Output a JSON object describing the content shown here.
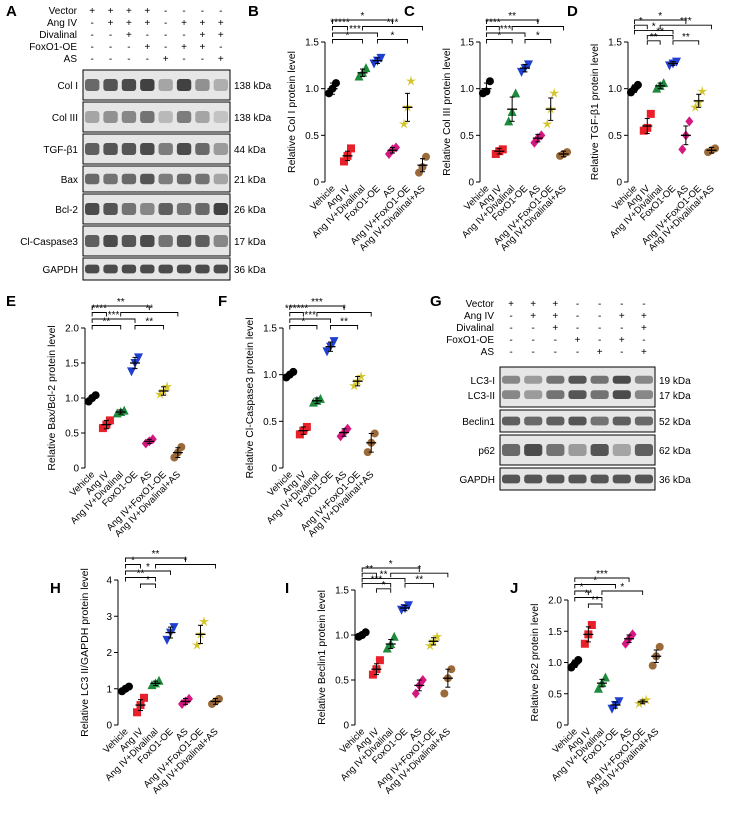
{
  "panel_letters": [
    "A",
    "B",
    "C",
    "D",
    "E",
    "F",
    "G",
    "H",
    "I",
    "J"
  ],
  "colors": {
    "Vehicle": "#000000",
    "Ang IV": "#e8202a",
    "Ang IV+Divalinal": "#1e8a3c",
    "FoxO1-OE": "#1f3fd1",
    "AS": "#d4187f",
    "Ang IV+FoxO1-OE": "#d4c42a",
    "Ang IV+Divalinal+AS": "#9a6a3a"
  },
  "blotA": {
    "rows": [
      {
        "name": "Vector",
        "signs": [
          "+",
          "+",
          "+",
          "+",
          "-",
          "-",
          "-",
          "-"
        ]
      },
      {
        "name": "Ang IV",
        "signs": [
          "-",
          "+",
          "+",
          "+",
          "-",
          "+",
          "+",
          "+"
        ]
      },
      {
        "name": "Divalinal",
        "signs": [
          "-",
          "-",
          "+",
          "-",
          "-",
          "-",
          "+",
          "+"
        ]
      },
      {
        "name": "FoxO1-OE",
        "signs": [
          "-",
          "-",
          "-",
          "+",
          "-",
          "+",
          "+",
          "-"
        ]
      },
      {
        "name": "AS",
        "signs": [
          "-",
          "-",
          "-",
          "-",
          "+",
          "-",
          "-",
          "+"
        ]
      }
    ],
    "bands": [
      {
        "name": "Col I",
        "kda": "138 kDa",
        "intensity": [
          0.75,
          0.85,
          0.9,
          0.95,
          0.45,
          0.95,
          0.55,
          0.4
        ]
      },
      {
        "name": "Col III",
        "kda": "138 kDa",
        "intensity": [
          0.45,
          0.55,
          0.6,
          0.7,
          0.35,
          0.65,
          0.45,
          0.3
        ]
      },
      {
        "name": "TGF-β1",
        "kda": "44 kDa",
        "intensity": [
          0.8,
          0.85,
          0.85,
          0.9,
          0.65,
          0.9,
          0.75,
          0.5
        ]
      },
      {
        "name": "Bax",
        "kda": "21 kDa",
        "intensity": [
          0.75,
          0.7,
          0.75,
          0.85,
          0.65,
          0.75,
          0.7,
          0.45
        ]
      },
      {
        "name": "Bcl-2",
        "kda": "26 kDa",
        "intensity": [
          0.9,
          0.85,
          0.7,
          0.6,
          0.8,
          0.7,
          0.75,
          0.95
        ]
      },
      {
        "name": "Cl-Caspase3",
        "kda": "17 kDa",
        "intensity": [
          0.8,
          0.9,
          0.85,
          0.9,
          0.7,
          0.85,
          0.8,
          0.6
        ]
      },
      {
        "name": "GAPDH",
        "kda": "36 kDa",
        "intensity": [
          0.9,
          0.9,
          0.9,
          0.9,
          0.9,
          0.9,
          0.9,
          0.9
        ]
      }
    ]
  },
  "blotG": {
    "rows": [
      {
        "name": "Vector",
        "signs": [
          "+",
          "+",
          "+",
          "-",
          "-",
          "-",
          "-"
        ]
      },
      {
        "name": "Ang IV",
        "signs": [
          "-",
          "+",
          "+",
          "-",
          "-",
          "+",
          "+"
        ]
      },
      {
        "name": "Divalinal",
        "signs": [
          "-",
          "-",
          "+",
          "-",
          "-",
          "-",
          "+"
        ]
      },
      {
        "name": "FoxO1-OE",
        "signs": [
          "-",
          "-",
          "-",
          "+",
          "-",
          "+",
          "-"
        ]
      },
      {
        "name": "AS",
        "signs": [
          "-",
          "-",
          "-",
          "-",
          "+",
          "-",
          "+"
        ]
      }
    ],
    "bands": [
      {
        "name": "LC3-I\nLC3-II",
        "kda": "19 kDa\n17 kDa",
        "intensity": [
          0.6,
          0.5,
          0.7,
          0.85,
          0.7,
          0.9,
          0.6
        ]
      },
      {
        "name": "Beclin1",
        "kda": "52 kDa",
        "intensity": [
          0.8,
          0.75,
          0.8,
          0.85,
          0.7,
          0.8,
          0.75
        ]
      },
      {
        "name": "p62",
        "kda": "62 kDa",
        "intensity": [
          0.75,
          0.9,
          0.7,
          0.5,
          0.85,
          0.45,
          0.8
        ]
      },
      {
        "name": "GAPDH",
        "kda": "36 kDa",
        "intensity": [
          0.85,
          0.85,
          0.85,
          0.85,
          0.85,
          0.85,
          0.85
        ]
      }
    ]
  },
  "chart_data": [
    {
      "type": "scatter",
      "panel": "B",
      "ylabel": "Relative Col I protein level",
      "ylim": [
        0,
        1.5
      ],
      "yticks": [
        0,
        0.5,
        1.0,
        1.5
      ],
      "categories": [
        "Vehicle",
        "Ang IV",
        "Ang IV+Divalinal",
        "FoxO1-OE",
        "AS",
        "Ang IV+FoxO1-OE",
        "Ang IV+Divalinal+AS"
      ],
      "means": [
        1.0,
        0.28,
        1.17,
        1.3,
        0.34,
        0.8,
        0.18
      ],
      "errors": [
        0.06,
        0.05,
        0.04,
        0.03,
        0.03,
        0.15,
        0.07
      ],
      "points": [
        [
          0.95,
          1.0,
          1.06
        ],
        [
          0.22,
          0.28,
          0.36
        ],
        [
          1.13,
          1.17,
          1.22
        ],
        [
          1.27,
          1.3,
          1.33
        ],
        [
          0.3,
          0.35,
          0.37
        ],
        [
          0.62,
          0.8,
          1.08
        ],
        [
          0.1,
          0.16,
          0.27
        ]
      ],
      "sig": [
        {
          "from": 1,
          "to": 5,
          "label": "*"
        },
        {
          "from": 1,
          "to": 4,
          "label": "***"
        },
        {
          "from": 1,
          "to": 3,
          "label": "*"
        },
        {
          "from": 4,
          "to": 6,
          "label": "*"
        },
        {
          "from": 1,
          "to": 2,
          "label": "*****"
        },
        {
          "from": 3,
          "to": 7,
          "label": "***"
        }
      ]
    },
    {
      "type": "scatter",
      "panel": "C",
      "ylabel": "Relative Col III protein level",
      "ylim": [
        0,
        1.5
      ],
      "yticks": [
        0,
        0.5,
        1.0,
        1.5
      ],
      "categories": [
        "Vehicle",
        "Ang IV",
        "Ang IV+Divalinal",
        "FoxO1-OE",
        "AS",
        "Ang IV+FoxO1-OE",
        "Ang IV+Divalinal+AS"
      ],
      "means": [
        1.0,
        0.33,
        0.78,
        1.22,
        0.47,
        0.78,
        0.3
      ],
      "errors": [
        0.06,
        0.03,
        0.13,
        0.04,
        0.04,
        0.12,
        0.03
      ],
      "points": [
        [
          0.95,
          0.97,
          1.08
        ],
        [
          0.3,
          0.33,
          0.35
        ],
        [
          0.65,
          0.75,
          0.95
        ],
        [
          1.18,
          1.22,
          1.26
        ],
        [
          0.42,
          0.47,
          0.5
        ],
        [
          0.62,
          0.78,
          0.95
        ],
        [
          0.28,
          0.3,
          0.32
        ]
      ],
      "sig": [
        {
          "from": 1,
          "to": 5,
          "label": "**"
        },
        {
          "from": 1,
          "to": 4,
          "label": "***"
        },
        {
          "from": 1,
          "to": 3,
          "label": "*"
        },
        {
          "from": 4,
          "to": 6,
          "label": "*"
        },
        {
          "from": 1,
          "to": 2,
          "label": "****"
        },
        {
          "from": 3,
          "to": 7,
          "label": "*"
        }
      ]
    },
    {
      "type": "scatter",
      "panel": "D",
      "ylabel": "Relative TGF-β1 protein level",
      "ylim": [
        0,
        1.5
      ],
      "yticks": [
        0,
        0.5,
        1.0,
        1.5
      ],
      "categories": [
        "Vehicle",
        "Ang IV",
        "Ang IV+Divalinal",
        "FoxO1-OE",
        "AS",
        "Ang IV+FoxO1-OE",
        "Ang IV+Divalinal+AS"
      ],
      "means": [
        1.0,
        0.6,
        1.03,
        1.27,
        0.5,
        0.87,
        0.34
      ],
      "errors": [
        0.04,
        0.08,
        0.03,
        0.02,
        0.1,
        0.07,
        0.03
      ],
      "points": [
        [
          0.96,
          1.0,
          1.04
        ],
        [
          0.55,
          0.58,
          0.73
        ],
        [
          1.0,
          1.03,
          1.06
        ],
        [
          1.25,
          1.27,
          1.29
        ],
        [
          0.35,
          0.5,
          0.65
        ],
        [
          0.8,
          0.85,
          0.97
        ],
        [
          0.32,
          0.34,
          0.36
        ]
      ],
      "sig": [
        {
          "from": 1,
          "to": 5,
          "label": "*"
        },
        {
          "from": 1,
          "to": 4,
          "label": "*"
        },
        {
          "from": 2,
          "to": 4,
          "label": "**"
        },
        {
          "from": 4,
          "to": 6,
          "label": "**"
        },
        {
          "from": 1,
          "to": 2,
          "label": "*"
        },
        {
          "from": 2,
          "to": 3,
          "label": "**"
        },
        {
          "from": 3,
          "to": 7,
          "label": "***"
        }
      ]
    },
    {
      "type": "scatter",
      "panel": "E",
      "ylabel": "Relative Bax/Bcl-2 protein level",
      "ylim": [
        0,
        2.0
      ],
      "yticks": [
        0,
        0.5,
        1.0,
        1.5,
        2.0
      ],
      "categories": [
        "Vehicle",
        "Ang IV",
        "Ang IV+Divalinal",
        "FoxO1-OE",
        "AS",
        "Ang IV+FoxO1-OE",
        "Ang IV+Divalinal+AS"
      ],
      "means": [
        1.0,
        0.62,
        0.8,
        1.5,
        0.38,
        1.1,
        0.22
      ],
      "errors": [
        0.04,
        0.06,
        0.03,
        0.08,
        0.03,
        0.06,
        0.07
      ],
      "points": [
        [
          0.95,
          1.0,
          1.04
        ],
        [
          0.57,
          0.62,
          0.68
        ],
        [
          0.78,
          0.8,
          0.82
        ],
        [
          1.38,
          1.5,
          1.58
        ],
        [
          0.35,
          0.38,
          0.41
        ],
        [
          1.05,
          1.1,
          1.16
        ],
        [
          0.15,
          0.22,
          0.3
        ]
      ],
      "sig": [
        {
          "from": 1,
          "to": 5,
          "label": "**"
        },
        {
          "from": 1,
          "to": 4,
          "label": "***"
        },
        {
          "from": 1,
          "to": 3,
          "label": "**"
        },
        {
          "from": 4,
          "to": 6,
          "label": "**"
        },
        {
          "from": 1,
          "to": 2,
          "label": "****"
        },
        {
          "from": 3,
          "to": 7,
          "label": "**"
        }
      ]
    },
    {
      "type": "scatter",
      "panel": "F",
      "ylabel": "Relative Cl-Caspase3 protein level",
      "ylim": [
        0,
        1.5
      ],
      "yticks": [
        0,
        0.5,
        1.0,
        1.5
      ],
      "categories": [
        "Vehicle",
        "Ang IV",
        "Ang IV+Divalinal",
        "FoxO1-OE",
        "AS",
        "Ang IV+FoxO1-OE",
        "Ang IV+Divalinal+AS"
      ],
      "means": [
        1.0,
        0.4,
        0.72,
        1.3,
        0.38,
        0.93,
        0.27
      ],
      "errors": [
        0.03,
        0.04,
        0.03,
        0.05,
        0.04,
        0.05,
        0.1
      ],
      "points": [
        [
          0.97,
          1.0,
          1.03
        ],
        [
          0.36,
          0.4,
          0.44
        ],
        [
          0.7,
          0.72,
          0.74
        ],
        [
          1.25,
          1.3,
          1.36
        ],
        [
          0.34,
          0.38,
          0.42
        ],
        [
          0.88,
          0.93,
          0.98
        ],
        [
          0.17,
          0.27,
          0.37
        ]
      ],
      "sig": [
        {
          "from": 1,
          "to": 5,
          "label": "***"
        },
        {
          "from": 1,
          "to": 4,
          "label": "***"
        },
        {
          "from": 1,
          "to": 3,
          "label": "*"
        },
        {
          "from": 4,
          "to": 6,
          "label": "**"
        },
        {
          "from": 1,
          "to": 2,
          "label": "******"
        },
        {
          "from": 3,
          "to": 7,
          "label": "*"
        }
      ]
    },
    {
      "type": "scatter",
      "panel": "H",
      "ylabel": "Relative LC3 II/GAPDH protein level",
      "ylim": [
        0,
        4
      ],
      "yticks": [
        0,
        1,
        2,
        3,
        4
      ],
      "categories": [
        "Vehicle",
        "Ang IV",
        "Ang IV+Divalinal",
        "FoxO1-OE",
        "AS",
        "Ang IV+FoxO1-OE",
        "Ang IV+Divalinal+AS"
      ],
      "means": [
        1.0,
        0.55,
        1.15,
        2.55,
        0.65,
        2.5,
        0.65
      ],
      "errors": [
        0.06,
        0.15,
        0.06,
        0.15,
        0.08,
        0.25,
        0.08
      ],
      "points": [
        [
          0.93,
          1.0,
          1.06
        ],
        [
          0.35,
          0.55,
          0.75
        ],
        [
          1.1,
          1.15,
          1.22
        ],
        [
          2.35,
          2.55,
          2.7
        ],
        [
          0.58,
          0.65,
          0.72
        ],
        [
          2.2,
          2.5,
          2.85
        ],
        [
          0.58,
          0.65,
          0.72
        ]
      ],
      "sig": [
        {
          "from": 1,
          "to": 5,
          "label": "**"
        },
        {
          "from": 1,
          "to": 4,
          "label": "*"
        },
        {
          "from": 1,
          "to": 3,
          "label": "**"
        },
        {
          "from": 1,
          "to": 2,
          "label": "*"
        },
        {
          "from": 2,
          "to": 3,
          "label": "*"
        },
        {
          "from": 3,
          "to": 7,
          "label": "*"
        }
      ]
    },
    {
      "type": "scatter",
      "panel": "I",
      "ylabel": "Relative Beclin1 protein level",
      "ylim": [
        0,
        1.5
      ],
      "yticks": [
        0,
        0.5,
        1.0,
        1.5
      ],
      "categories": [
        "Vehicle",
        "Ang IV",
        "Ang IV+Divalinal",
        "FoxO1-OE",
        "AS",
        "Ang IV+FoxO1-OE",
        "Ang IV+Divalinal+AS"
      ],
      "means": [
        1.0,
        0.62,
        0.9,
        1.3,
        0.44,
        0.93,
        0.52
      ],
      "errors": [
        0.03,
        0.06,
        0.05,
        0.03,
        0.06,
        0.04,
        0.1
      ],
      "points": [
        [
          0.98,
          1.0,
          1.03
        ],
        [
          0.56,
          0.62,
          0.72
        ],
        [
          0.85,
          0.9,
          0.98
        ],
        [
          1.28,
          1.3,
          1.33
        ],
        [
          0.35,
          0.44,
          0.5
        ],
        [
          0.88,
          0.93,
          0.98
        ],
        [
          0.35,
          0.52,
          0.62
        ]
      ],
      "sig": [
        {
          "from": 1,
          "to": 5,
          "label": "*"
        },
        {
          "from": 1,
          "to": 4,
          "label": "**"
        },
        {
          "from": 1,
          "to": 3,
          "label": "***"
        },
        {
          "from": 4,
          "to": 6,
          "label": "**"
        },
        {
          "from": 1,
          "to": 2,
          "label": "**"
        },
        {
          "from": 2,
          "to": 3,
          "label": "*"
        },
        {
          "from": 3,
          "to": 7,
          "label": "*"
        }
      ]
    },
    {
      "type": "scatter",
      "panel": "J",
      "ylabel": "Relative p62 protein level",
      "ylim": [
        0,
        2.0
      ],
      "yticks": [
        0,
        0.5,
        1.0,
        1.5,
        2.0
      ],
      "categories": [
        "Vehicle",
        "Ang IV",
        "Ang IV+Divalinal",
        "FoxO1-OE",
        "AS",
        "Ang IV+FoxO1-OE",
        "Ang IV+Divalinal+AS"
      ],
      "means": [
        0.98,
        1.45,
        0.67,
        0.32,
        1.38,
        0.37,
        1.1
      ],
      "errors": [
        0.06,
        0.12,
        0.06,
        0.05,
        0.06,
        0.03,
        0.1
      ],
      "points": [
        [
          0.92,
          0.98,
          1.04
        ],
        [
          1.3,
          1.45,
          1.6
        ],
        [
          0.58,
          0.67,
          0.76
        ],
        [
          0.26,
          0.32,
          0.38
        ],
        [
          1.3,
          1.38,
          1.45
        ],
        [
          0.34,
          0.37,
          0.4
        ],
        [
          0.95,
          1.1,
          1.25
        ]
      ],
      "sig": [
        {
          "from": 1,
          "to": 5,
          "label": "***"
        },
        {
          "from": 1,
          "to": 4,
          "label": "*"
        },
        {
          "from": 1,
          "to": 3,
          "label": "**"
        },
        {
          "from": 1,
          "to": 2,
          "label": "*"
        },
        {
          "from": 2,
          "to": 3,
          "label": "**"
        },
        {
          "from": 3,
          "to": 6,
          "label": "*"
        }
      ]
    }
  ]
}
